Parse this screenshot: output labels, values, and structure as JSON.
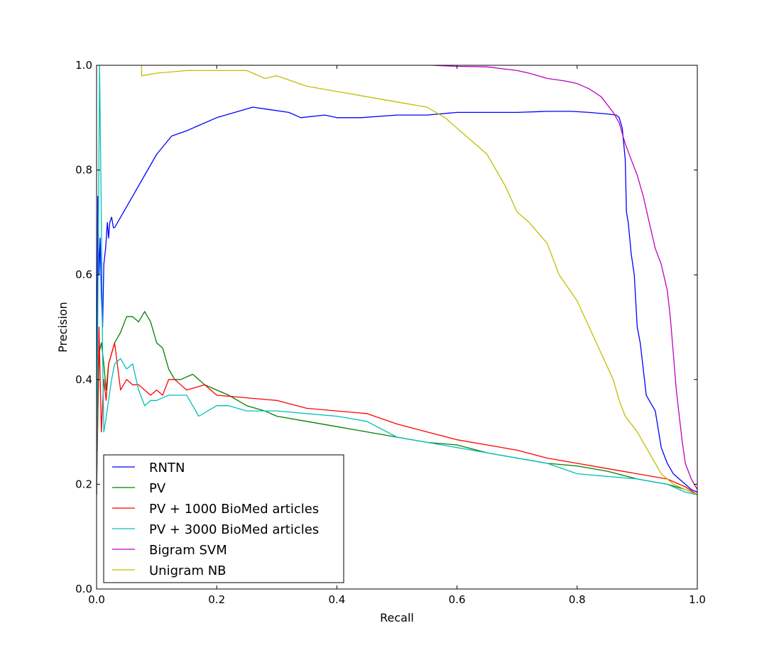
{
  "chart_data": {
    "type": "line",
    "xlabel": "Recall",
    "ylabel": "Precision",
    "xlim": [
      0.0,
      1.0
    ],
    "ylim": [
      0.0,
      1.0
    ],
    "xticks": [
      "0.0",
      "0.2",
      "0.4",
      "0.6",
      "0.8",
      "1.0"
    ],
    "yticks": [
      "0.0",
      "0.2",
      "0.4",
      "0.6",
      "0.8",
      "1.0"
    ],
    "grid": false,
    "legend_position": "lower-left",
    "series": [
      {
        "name": "RNTN",
        "color": "#0000ff",
        "x": [
          0.0,
          0.002,
          0.004,
          0.006,
          0.008,
          0.01,
          0.012,
          0.015,
          0.018,
          0.02,
          0.022,
          0.025,
          0.028,
          0.03,
          0.05,
          0.08,
          0.1,
          0.125,
          0.15,
          0.17,
          0.2,
          0.23,
          0.26,
          0.29,
          0.32,
          0.34,
          0.38,
          0.4,
          0.44,
          0.5,
          0.55,
          0.6,
          0.65,
          0.7,
          0.75,
          0.79,
          0.82,
          0.85,
          0.865,
          0.87,
          0.875,
          0.88,
          0.882,
          0.885,
          0.89,
          0.895,
          0.9,
          0.905,
          0.91,
          0.915,
          0.92,
          0.93,
          0.94,
          0.95,
          0.96,
          0.97,
          0.98,
          0.99,
          1.0
        ],
        "y": [
          0.18,
          0.75,
          0.6,
          0.67,
          0.56,
          0.5,
          0.62,
          0.65,
          0.7,
          0.67,
          0.7,
          0.71,
          0.69,
          0.69,
          0.73,
          0.79,
          0.83,
          0.865,
          0.875,
          0.885,
          0.9,
          0.91,
          0.92,
          0.915,
          0.91,
          0.9,
          0.905,
          0.9,
          0.9,
          0.905,
          0.905,
          0.91,
          0.91,
          0.91,
          0.912,
          0.912,
          0.91,
          0.907,
          0.905,
          0.9,
          0.88,
          0.82,
          0.72,
          0.7,
          0.64,
          0.6,
          0.5,
          0.47,
          0.42,
          0.37,
          0.36,
          0.34,
          0.27,
          0.24,
          0.22,
          0.21,
          0.2,
          0.19,
          0.185
        ]
      },
      {
        "name": "PV",
        "color": "#008000",
        "x": [
          0.0,
          0.004,
          0.008,
          0.012,
          0.016,
          0.02,
          0.025,
          0.03,
          0.04,
          0.05,
          0.06,
          0.07,
          0.08,
          0.09,
          0.1,
          0.11,
          0.12,
          0.13,
          0.14,
          0.16,
          0.18,
          0.2,
          0.22,
          0.25,
          0.28,
          0.3,
          0.35,
          0.4,
          0.45,
          0.5,
          0.55,
          0.6,
          0.65,
          0.7,
          0.75,
          0.8,
          0.85,
          0.9,
          0.95,
          0.98,
          1.0
        ],
        "y": [
          0.19,
          0.45,
          0.47,
          0.43,
          0.38,
          0.43,
          0.45,
          0.47,
          0.49,
          0.52,
          0.52,
          0.51,
          0.53,
          0.51,
          0.47,
          0.46,
          0.42,
          0.4,
          0.4,
          0.41,
          0.39,
          0.38,
          0.37,
          0.35,
          0.34,
          0.33,
          0.32,
          0.31,
          0.3,
          0.29,
          0.28,
          0.275,
          0.26,
          0.25,
          0.24,
          0.235,
          0.225,
          0.21,
          0.2,
          0.19,
          0.18
        ]
      },
      {
        "name": "PV + 1000 BioMed articles",
        "color": "#ff0000",
        "x": [
          0.0,
          0.004,
          0.008,
          0.012,
          0.016,
          0.02,
          0.025,
          0.03,
          0.04,
          0.05,
          0.06,
          0.07,
          0.08,
          0.09,
          0.1,
          0.11,
          0.12,
          0.13,
          0.15,
          0.18,
          0.2,
          0.25,
          0.3,
          0.35,
          0.4,
          0.45,
          0.5,
          0.55,
          0.6,
          0.65,
          0.7,
          0.75,
          0.8,
          0.85,
          0.9,
          0.95,
          0.98,
          1.0
        ],
        "y": [
          0.18,
          0.5,
          0.3,
          0.4,
          0.36,
          0.43,
          0.45,
          0.47,
          0.38,
          0.4,
          0.39,
          0.39,
          0.38,
          0.37,
          0.38,
          0.37,
          0.4,
          0.4,
          0.38,
          0.39,
          0.37,
          0.365,
          0.36,
          0.345,
          0.34,
          0.335,
          0.315,
          0.3,
          0.285,
          0.275,
          0.265,
          0.25,
          0.24,
          0.23,
          0.22,
          0.21,
          0.195,
          0.18
        ]
      },
      {
        "name": "PV + 3000 BioMed articles",
        "color": "#00bfbf",
        "x": [
          0.0,
          0.005,
          0.008,
          0.01,
          0.012,
          0.015,
          0.02,
          0.025,
          0.03,
          0.04,
          0.05,
          0.06,
          0.07,
          0.08,
          0.09,
          0.1,
          0.12,
          0.15,
          0.17,
          0.2,
          0.22,
          0.25,
          0.3,
          0.35,
          0.4,
          0.45,
          0.5,
          0.55,
          0.6,
          0.65,
          0.7,
          0.75,
          0.8,
          0.85,
          0.9,
          0.95,
          0.98,
          1.0
        ],
        "y": [
          0.18,
          1.0,
          0.7,
          0.45,
          0.3,
          0.32,
          0.36,
          0.4,
          0.43,
          0.44,
          0.42,
          0.43,
          0.38,
          0.35,
          0.36,
          0.36,
          0.37,
          0.37,
          0.33,
          0.35,
          0.35,
          0.34,
          0.34,
          0.335,
          0.33,
          0.32,
          0.29,
          0.28,
          0.27,
          0.26,
          0.25,
          0.24,
          0.22,
          0.215,
          0.21,
          0.2,
          0.185,
          0.18
        ]
      },
      {
        "name": "Bigram SVM",
        "color": "#bf00bf",
        "x": [
          0.56,
          0.6,
          0.65,
          0.7,
          0.72,
          0.75,
          0.78,
          0.8,
          0.82,
          0.84,
          0.86,
          0.87,
          0.88,
          0.89,
          0.9,
          0.91,
          0.92,
          0.93,
          0.94,
          0.95,
          0.955,
          0.96,
          0.965,
          0.97,
          0.975,
          0.98,
          0.99,
          1.0
        ],
        "y": [
          1.0,
          0.998,
          0.997,
          0.99,
          0.985,
          0.975,
          0.97,
          0.965,
          0.955,
          0.94,
          0.91,
          0.89,
          0.85,
          0.82,
          0.79,
          0.75,
          0.7,
          0.65,
          0.62,
          0.57,
          0.52,
          0.45,
          0.38,
          0.33,
          0.28,
          0.24,
          0.21,
          0.19
        ]
      },
      {
        "name": "Unigram NB",
        "color": "#bfbf00",
        "x": [
          0.075,
          0.075,
          0.1,
          0.15,
          0.2,
          0.25,
          0.28,
          0.3,
          0.35,
          0.4,
          0.45,
          0.5,
          0.55,
          0.58,
          0.6,
          0.62,
          0.65,
          0.68,
          0.7,
          0.72,
          0.75,
          0.77,
          0.8,
          0.82,
          0.84,
          0.86,
          0.87,
          0.88,
          0.9,
          0.92,
          0.94,
          0.96,
          0.98,
          1.0
        ],
        "y": [
          1.0,
          0.98,
          0.985,
          0.99,
          0.99,
          0.99,
          0.975,
          0.98,
          0.96,
          0.95,
          0.94,
          0.93,
          0.92,
          0.9,
          0.88,
          0.86,
          0.83,
          0.77,
          0.72,
          0.7,
          0.66,
          0.6,
          0.55,
          0.5,
          0.45,
          0.4,
          0.36,
          0.33,
          0.3,
          0.26,
          0.22,
          0.2,
          0.19,
          0.18
        ]
      }
    ]
  }
}
